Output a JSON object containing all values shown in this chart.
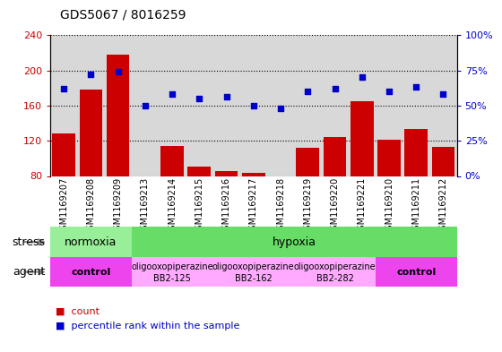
{
  "title": "GDS5067 / 8016259",
  "samples": [
    "GSM1169207",
    "GSM1169208",
    "GSM1169209",
    "GSM1169213",
    "GSM1169214",
    "GSM1169215",
    "GSM1169216",
    "GSM1169217",
    "GSM1169218",
    "GSM1169219",
    "GSM1169220",
    "GSM1169221",
    "GSM1169210",
    "GSM1169211",
    "GSM1169212"
  ],
  "counts": [
    128,
    178,
    218,
    80,
    114,
    91,
    86,
    84,
    80,
    112,
    124,
    165,
    121,
    133,
    113
  ],
  "percentiles": [
    62,
    72,
    74,
    50,
    58,
    55,
    56,
    50,
    48,
    60,
    62,
    70,
    60,
    63,
    58
  ],
  "ylim_left": [
    80,
    240
  ],
  "ylim_right": [
    0,
    100
  ],
  "yticks_left": [
    80,
    120,
    160,
    200,
    240
  ],
  "yticks_right": [
    0,
    25,
    50,
    75,
    100
  ],
  "bar_color": "#cc0000",
  "scatter_color": "#0000cc",
  "background_color": "#ffffff",
  "col_bg_color": "#d8d8d8",
  "grid_color": "#000000",
  "stress_groups": [
    {
      "label": "normoxia",
      "start": 0,
      "end": 3,
      "color": "#99ee99"
    },
    {
      "label": "hypoxia",
      "start": 3,
      "end": 15,
      "color": "#66dd66"
    }
  ],
  "agent_groups": [
    {
      "label": "control",
      "start": 0,
      "end": 3,
      "color": "#ee44ee",
      "text_lines": [
        "control"
      ],
      "bold": true
    },
    {
      "label": "oligooxopiperazine BB2-125",
      "start": 3,
      "end": 6,
      "color": "#ffaaff",
      "text_lines": [
        "oligooxopiperazine",
        "BB2-125"
      ],
      "bold": false
    },
    {
      "label": "oligooxopiperazine BB2-162",
      "start": 6,
      "end": 9,
      "color": "#ffaaff",
      "text_lines": [
        "oligooxopiperazine",
        "BB2-162"
      ],
      "bold": false
    },
    {
      "label": "oligooxopiperazine BB2-282",
      "start": 9,
      "end": 12,
      "color": "#ffaaff",
      "text_lines": [
        "oligooxopiperazine",
        "BB2-282"
      ],
      "bold": false
    },
    {
      "label": "control",
      "start": 12,
      "end": 15,
      "color": "#ee44ee",
      "text_lines": [
        "control"
      ],
      "bold": true
    }
  ],
  "legend_items": [
    {
      "color": "#cc0000",
      "label": "count"
    },
    {
      "color": "#0000cc",
      "label": "percentile rank within the sample"
    }
  ]
}
